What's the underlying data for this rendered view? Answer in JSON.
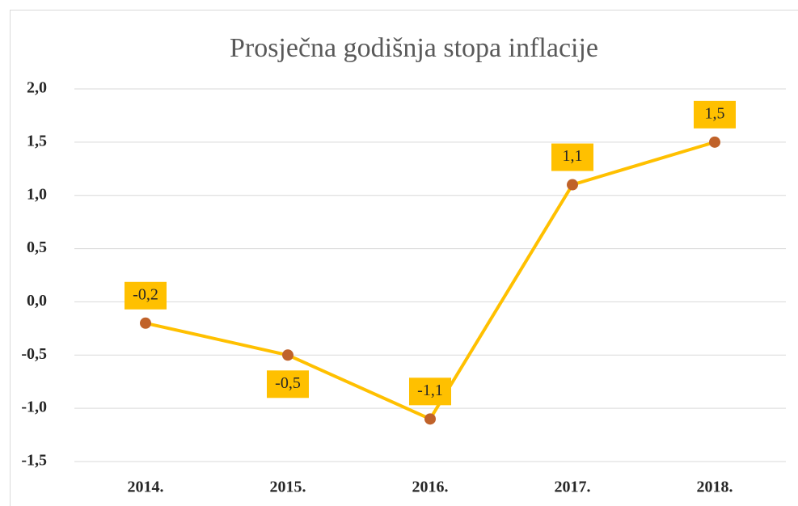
{
  "chart_data": {
    "type": "line",
    "title": "Prosječna godišnja stopa inflacije",
    "categories": [
      "2014.",
      "2015.",
      "2016.",
      "2017.",
      "2018."
    ],
    "series": [
      {
        "color": "#ffc000",
        "marker_color": "#c0622a",
        "values": [
          -0.2,
          -0.5,
          -1.1,
          1.1,
          1.5
        ],
        "value_labels": [
          "-0,2",
          "-0,5",
          "-1,1",
          "1,1",
          "1,5"
        ],
        "label_color": "#ffc000"
      }
    ],
    "ylim": [
      -1.5,
      2.0
    ],
    "yticks": [
      {
        "value": -1.5,
        "label": "-1,5"
      },
      {
        "value": -1.0,
        "label": "-1,0"
      },
      {
        "value": -0.5,
        "label": "-0,5"
      },
      {
        "value": 0.0,
        "label": "0,0"
      },
      {
        "value": 0.5,
        "label": "0,5"
      },
      {
        "value": 1.0,
        "label": "1,0"
      },
      {
        "value": 1.5,
        "label": "1,5"
      },
      {
        "value": 2.0,
        "label": "2,0"
      }
    ],
    "grid": true
  }
}
